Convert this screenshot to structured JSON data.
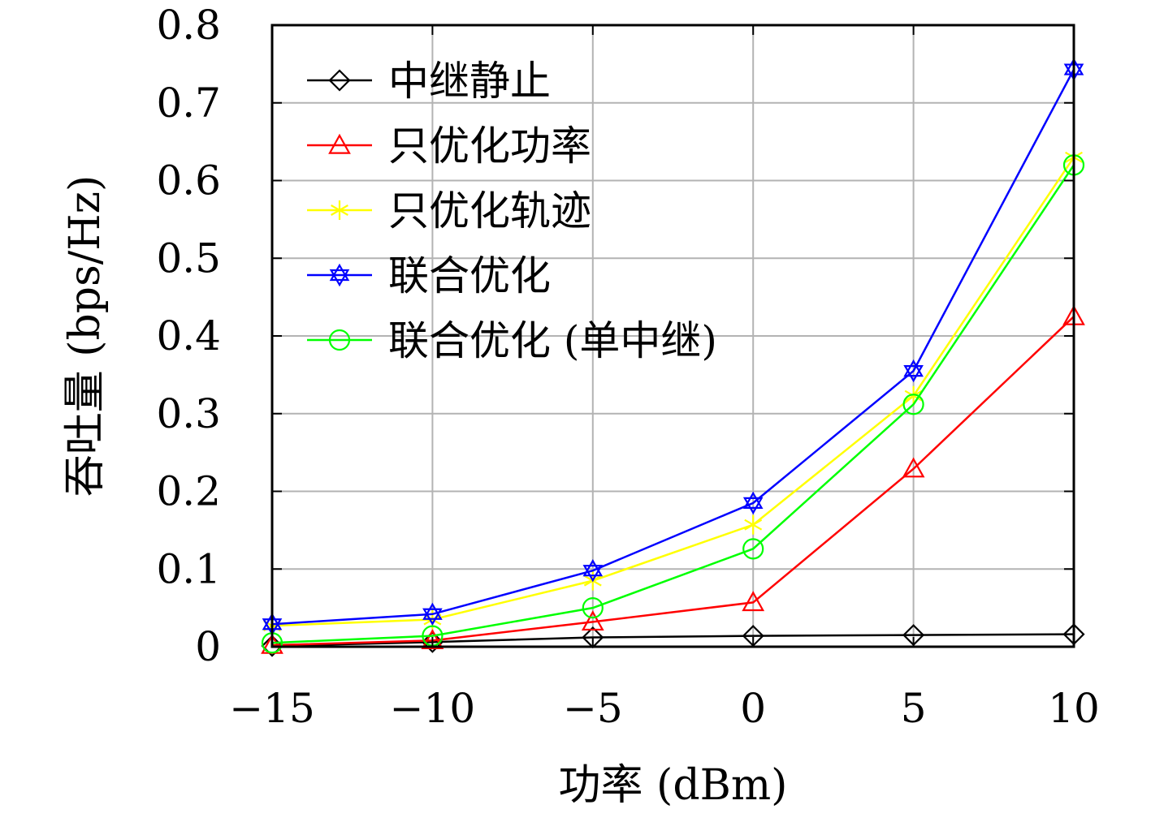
{
  "chart_data": {
    "type": "line",
    "title": "",
    "xlabel": "功率 (dBm)",
    "ylabel": "吞吐量 (bps/Hz)",
    "x": [
      -15,
      -10,
      -5,
      0,
      5,
      10
    ],
    "xticks": [
      "−15",
      "−10",
      "−5",
      "0",
      "5",
      "10"
    ],
    "yticks": [
      "0",
      "0.1",
      "0.2",
      "0.3",
      "0.4",
      "0.5",
      "0.6",
      "0.7",
      "0.8"
    ],
    "xlim": [
      -15,
      10
    ],
    "ylim": [
      0,
      0.8
    ],
    "grid": true,
    "legend_position": "top-left",
    "series": [
      {
        "name": "中继静止",
        "color": "#000000",
        "marker": "diamond",
        "values": [
          0.001,
          0.006,
          0.012,
          0.014,
          0.015,
          0.016
        ]
      },
      {
        "name": "只优化功率",
        "color": "#ff0000",
        "marker": "triangle",
        "values": [
          0.002,
          0.008,
          0.032,
          0.057,
          0.229,
          0.425
        ]
      },
      {
        "name": "只优化轨迹",
        "color": "#ffff00",
        "marker": "asterisk",
        "values": [
          0.027,
          0.035,
          0.085,
          0.157,
          0.323,
          0.63
        ]
      },
      {
        "name": "联合优化",
        "color": "#0000ff",
        "marker": "star",
        "values": [
          0.029,
          0.042,
          0.098,
          0.185,
          0.355,
          0.743
        ]
      },
      {
        "name": "联合优化 (单中继)",
        "color": "#00ff00",
        "marker": "circle",
        "values": [
          0.005,
          0.014,
          0.05,
          0.126,
          0.312,
          0.62
        ]
      }
    ]
  }
}
